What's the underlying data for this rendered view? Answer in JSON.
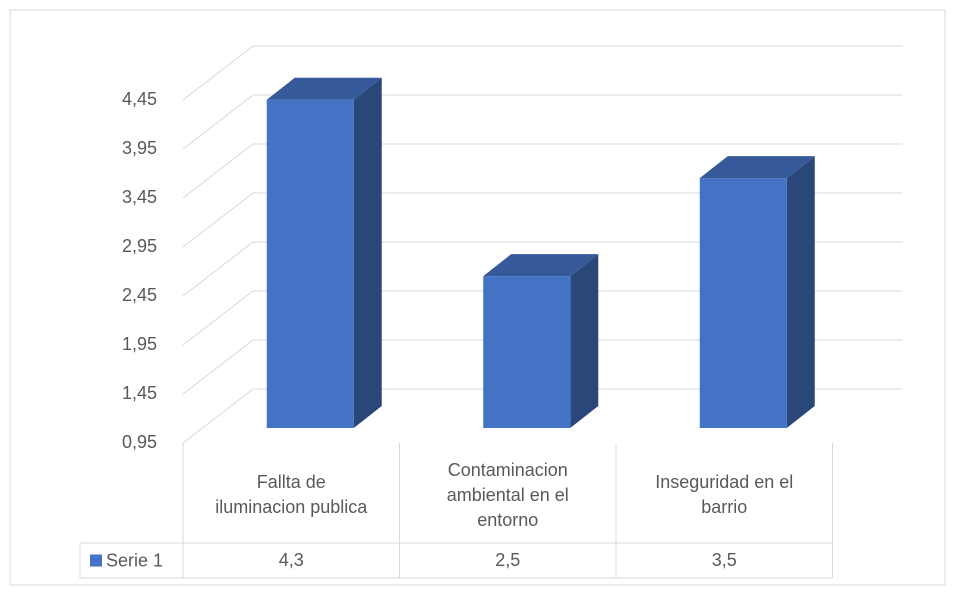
{
  "chart_data": {
    "type": "bar3d",
    "categories": [
      "Fallta de iluminacion publica",
      "Contaminacion ambiental en el entorno",
      "Inseguridad en el barrio"
    ],
    "series": [
      {
        "name": "Serie 1",
        "color": "#4472c4",
        "values": [
          4.3,
          2.5,
          3.5
        ],
        "value_labels": [
          "4,3",
          "2,5",
          "3,5"
        ]
      }
    ],
    "ylim": [
      0.95,
      4.45
    ],
    "yticks": [
      {
        "value": 0.95,
        "label": "0,95"
      },
      {
        "value": 1.45,
        "label": "1,45"
      },
      {
        "value": 1.95,
        "label": "1,95"
      },
      {
        "value": 2.45,
        "label": "2,45"
      },
      {
        "value": 2.95,
        "label": "2,95"
      },
      {
        "value": 3.45,
        "label": "3,45"
      },
      {
        "value": 3.95,
        "label": "3,95"
      },
      {
        "value": 4.45,
        "label": "4,45"
      }
    ],
    "grid": true,
    "data_table": true
  }
}
